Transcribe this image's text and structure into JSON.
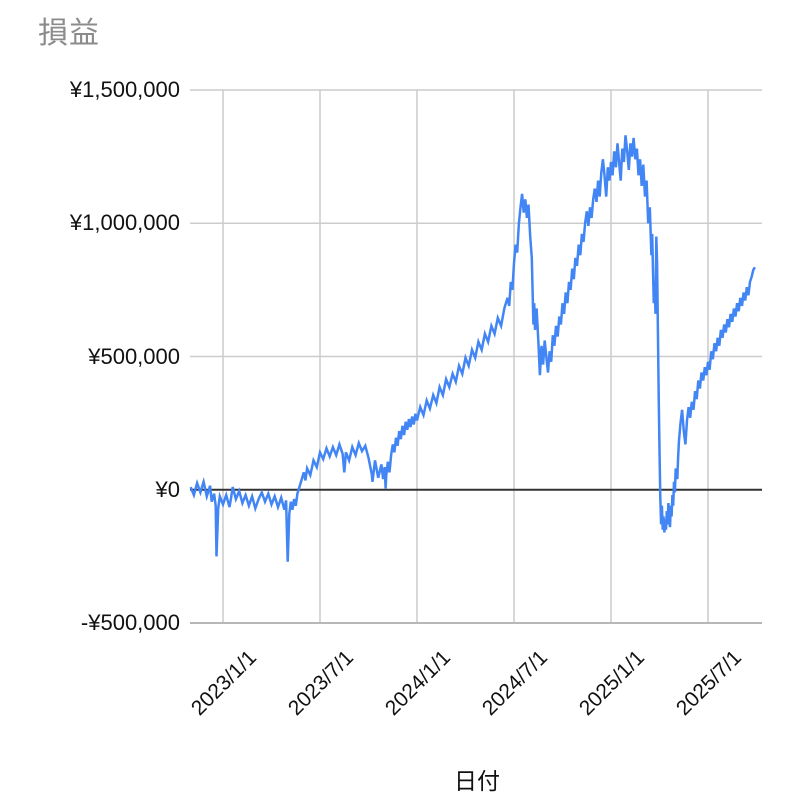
{
  "chart_data": {
    "type": "line",
    "title": "損益",
    "xlabel": "日付",
    "ylabel": "",
    "series_name": "損益",
    "series_color": "#4285F4",
    "grid_color": "#cccccc",
    "bottom_axis_color": "#b7b7b7",
    "baseline_color": "#333333",
    "title_color": "#8b8b8b",
    "label_color": "#111111",
    "x_unit": "months_since_2022-11-01",
    "y_unit": "JPY_thousands",
    "ylim_k": [
      -500,
      1500
    ],
    "baseline_k": 0,
    "grid": true,
    "legend_position": "none",
    "y_ticks": [
      {
        "label": "¥1,500,000",
        "value_k": 1500
      },
      {
        "label": "¥1,000,000",
        "value_k": 1000
      },
      {
        "label": "¥500,000",
        "value_k": 500
      },
      {
        "label": "¥0",
        "value_k": 0
      },
      {
        "label": "-¥500,000",
        "value_k": -500
      }
    ],
    "x_ticks": [
      {
        "label": "2023/1/1",
        "month": 2
      },
      {
        "label": "2023/7/1",
        "month": 8
      },
      {
        "label": "2024/1/1",
        "month": 14
      },
      {
        "label": "2024/7/1",
        "month": 20
      },
      {
        "label": "2025/1/1",
        "month": 26
      },
      {
        "label": "2025/7/1",
        "month": 32
      }
    ],
    "points": [
      [
        0,
        10
      ],
      [
        0.2,
        -20
      ],
      [
        0.4,
        25
      ],
      [
        0.6,
        -10
      ],
      [
        0.8,
        30
      ],
      [
        1.0,
        -25
      ],
      [
        1.2,
        15
      ],
      [
        1.3,
        -45
      ],
      [
        1.45,
        -15
      ],
      [
        1.55,
        -60
      ],
      [
        1.6,
        -250
      ],
      [
        1.7,
        -70
      ],
      [
        1.8,
        -25
      ],
      [
        2.0,
        -55
      ],
      [
        2.2,
        -20
      ],
      [
        2.4,
        -65
      ],
      [
        2.5,
        -30
      ],
      [
        2.6,
        10
      ],
      [
        2.8,
        -35
      ],
      [
        3.0,
        -5
      ],
      [
        3.2,
        -50
      ],
      [
        3.4,
        -20
      ],
      [
        3.6,
        -60
      ],
      [
        3.8,
        -25
      ],
      [
        4.0,
        -70
      ],
      [
        4.2,
        -35
      ],
      [
        4.4,
        -10
      ],
      [
        4.6,
        -45
      ],
      [
        4.8,
        -15
      ],
      [
        5.0,
        -55
      ],
      [
        5.2,
        -25
      ],
      [
        5.4,
        -65
      ],
      [
        5.6,
        -30
      ],
      [
        5.8,
        -75
      ],
      [
        5.9,
        -40
      ],
      [
        6.0,
        -270
      ],
      [
        6.1,
        -90
      ],
      [
        6.2,
        -45
      ],
      [
        6.3,
        -75
      ],
      [
        6.4,
        -35
      ],
      [
        6.5,
        -60
      ],
      [
        6.6,
        -15
      ],
      [
        6.8,
        25
      ],
      [
        7.0,
        65
      ],
      [
        7.1,
        35
      ],
      [
        7.2,
        80
      ],
      [
        7.4,
        55
      ],
      [
        7.6,
        110
      ],
      [
        7.8,
        85
      ],
      [
        8.0,
        140
      ],
      [
        8.2,
        115
      ],
      [
        8.4,
        155
      ],
      [
        8.6,
        125
      ],
      [
        8.8,
        160
      ],
      [
        9.0,
        130
      ],
      [
        9.2,
        170
      ],
      [
        9.4,
        135
      ],
      [
        9.5,
        65
      ],
      [
        9.6,
        140
      ],
      [
        9.8,
        110
      ],
      [
        10.0,
        160
      ],
      [
        10.2,
        130
      ],
      [
        10.4,
        175
      ],
      [
        10.6,
        145
      ],
      [
        10.8,
        165
      ],
      [
        11.0,
        120
      ],
      [
        11.2,
        60
      ],
      [
        11.25,
        30
      ],
      [
        11.4,
        110
      ],
      [
        11.6,
        45
      ],
      [
        11.8,
        95
      ],
      [
        11.9,
        40
      ],
      [
        12.0,
        85
      ],
      [
        12.06,
        5
      ],
      [
        12.1,
        55
      ],
      [
        12.2,
        105
      ],
      [
        12.3,
        65
      ],
      [
        12.4,
        130
      ],
      [
        12.5,
        170
      ],
      [
        12.6,
        140
      ],
      [
        12.7,
        195
      ],
      [
        12.8,
        165
      ],
      [
        12.9,
        220
      ],
      [
        13.0,
        190
      ],
      [
        13.1,
        240
      ],
      [
        13.2,
        205
      ],
      [
        13.3,
        255
      ],
      [
        13.4,
        225
      ],
      [
        13.5,
        265
      ],
      [
        13.6,
        235
      ],
      [
        13.7,
        275
      ],
      [
        13.8,
        245
      ],
      [
        13.9,
        285
      ],
      [
        14.0,
        260
      ],
      [
        14.2,
        310
      ],
      [
        14.4,
        280
      ],
      [
        14.6,
        335
      ],
      [
        14.8,
        305
      ],
      [
        15.0,
        355
      ],
      [
        15.2,
        325
      ],
      [
        15.4,
        385
      ],
      [
        15.6,
        355
      ],
      [
        15.8,
        415
      ],
      [
        16.0,
        385
      ],
      [
        16.2,
        435
      ],
      [
        16.4,
        405
      ],
      [
        16.6,
        465
      ],
      [
        16.8,
        435
      ],
      [
        17.0,
        495
      ],
      [
        17.2,
        465
      ],
      [
        17.4,
        525
      ],
      [
        17.6,
        495
      ],
      [
        17.8,
        555
      ],
      [
        18.0,
        525
      ],
      [
        18.2,
        585
      ],
      [
        18.4,
        555
      ],
      [
        18.6,
        615
      ],
      [
        18.8,
        585
      ],
      [
        19.0,
        645
      ],
      [
        19.2,
        615
      ],
      [
        19.4,
        680
      ],
      [
        19.6,
        720
      ],
      [
        19.7,
        690
      ],
      [
        19.8,
        780
      ],
      [
        19.9,
        750
      ],
      [
        20.0,
        850
      ],
      [
        20.1,
        920
      ],
      [
        20.2,
        890
      ],
      [
        20.3,
        1000
      ],
      [
        20.4,
        1060
      ],
      [
        20.5,
        1110
      ],
      [
        20.6,
        1040
      ],
      [
        20.7,
        1090
      ],
      [
        20.8,
        1020
      ],
      [
        20.9,
        1070
      ],
      [
        21.0,
        950
      ],
      [
        21.1,
        870
      ],
      [
        21.2,
        620
      ],
      [
        21.25,
        700
      ],
      [
        21.3,
        600
      ],
      [
        21.4,
        680
      ],
      [
        21.5,
        560
      ],
      [
        21.6,
        430
      ],
      [
        21.7,
        540
      ],
      [
        21.8,
        470
      ],
      [
        21.9,
        560
      ],
      [
        22.0,
        500
      ],
      [
        22.1,
        440
      ],
      [
        22.2,
        520
      ],
      [
        22.3,
        480
      ],
      [
        22.4,
        580
      ],
      [
        22.5,
        540
      ],
      [
        22.6,
        615
      ],
      [
        22.7,
        575
      ],
      [
        22.8,
        650
      ],
      [
        22.9,
        620
      ],
      [
        23.0,
        700
      ],
      [
        23.1,
        660
      ],
      [
        23.2,
        740
      ],
      [
        23.3,
        700
      ],
      [
        23.4,
        780
      ],
      [
        23.5,
        750
      ],
      [
        23.6,
        830
      ],
      [
        23.7,
        790
      ],
      [
        23.8,
        870
      ],
      [
        23.9,
        840
      ],
      [
        24.0,
        920
      ],
      [
        24.1,
        880
      ],
      [
        24.2,
        960
      ],
      [
        24.3,
        930
      ],
      [
        24.4,
        1000
      ],
      [
        24.5,
        1045
      ],
      [
        24.6,
        990
      ],
      [
        24.7,
        1060
      ],
      [
        24.8,
        1020
      ],
      [
        24.9,
        1090
      ],
      [
        25.0,
        1130
      ],
      [
        25.1,
        1080
      ],
      [
        25.2,
        1160
      ],
      [
        25.3,
        1100
      ],
      [
        25.4,
        1190
      ],
      [
        25.5,
        1240
      ],
      [
        25.6,
        1180
      ],
      [
        25.7,
        1100
      ],
      [
        25.8,
        1210
      ],
      [
        25.9,
        1160
      ],
      [
        26.0,
        1230
      ],
      [
        26.1,
        1180
      ],
      [
        26.2,
        1270
      ],
      [
        26.3,
        1210
      ],
      [
        26.4,
        1300
      ],
      [
        26.5,
        1230
      ],
      [
        26.6,
        1160
      ],
      [
        26.7,
        1280
      ],
      [
        26.8,
        1230
      ],
      [
        26.9,
        1330
      ],
      [
        27.0,
        1270
      ],
      [
        27.1,
        1200
      ],
      [
        27.2,
        1300
      ],
      [
        27.3,
        1250
      ],
      [
        27.4,
        1320
      ],
      [
        27.5,
        1240
      ],
      [
        27.6,
        1280
      ],
      [
        27.7,
        1180
      ],
      [
        27.8,
        1240
      ],
      [
        27.9,
        1140
      ],
      [
        28.0,
        1220
      ],
      [
        28.1,
        1100
      ],
      [
        28.2,
        1160
      ],
      [
        28.3,
        1000
      ],
      [
        28.4,
        1060
      ],
      [
        28.5,
        880
      ],
      [
        28.55,
        960
      ],
      [
        28.6,
        820
      ],
      [
        28.65,
        700
      ],
      [
        28.7,
        780
      ],
      [
        28.75,
        660
      ],
      [
        28.8,
        950
      ],
      [
        28.85,
        850
      ],
      [
        28.9,
        600
      ],
      [
        28.95,
        350
      ],
      [
        29.0,
        150
      ],
      [
        29.05,
        -30
      ],
      [
        29.1,
        -130
      ],
      [
        29.15,
        -60
      ],
      [
        29.2,
        -150
      ],
      [
        29.25,
        -100
      ],
      [
        29.3,
        -160
      ],
      [
        29.35,
        -110
      ],
      [
        29.4,
        -150
      ],
      [
        29.45,
        -80
      ],
      [
        29.5,
        -130
      ],
      [
        29.55,
        -50
      ],
      [
        29.6,
        -110
      ],
      [
        29.65,
        -140
      ],
      [
        29.7,
        -60
      ],
      [
        29.75,
        -100
      ],
      [
        29.8,
        -20
      ],
      [
        29.85,
        -60
      ],
      [
        29.9,
        30
      ],
      [
        29.95,
        -10
      ],
      [
        30.0,
        80
      ],
      [
        30.1,
        40
      ],
      [
        30.15,
        120
      ],
      [
        30.2,
        180
      ],
      [
        30.3,
        250
      ],
      [
        30.4,
        300
      ],
      [
        30.5,
        220
      ],
      [
        30.6,
        170
      ],
      [
        30.7,
        260
      ],
      [
        30.8,
        310
      ],
      [
        30.9,
        270
      ],
      [
        31.0,
        330
      ],
      [
        31.1,
        300
      ],
      [
        31.2,
        370
      ],
      [
        31.3,
        340
      ],
      [
        31.4,
        410
      ],
      [
        31.5,
        380
      ],
      [
        31.6,
        440
      ],
      [
        31.7,
        410
      ],
      [
        31.8,
        460
      ],
      [
        31.9,
        430
      ],
      [
        32.0,
        480
      ],
      [
        32.1,
        450
      ],
      [
        32.2,
        520
      ],
      [
        32.3,
        490
      ],
      [
        32.4,
        550
      ],
      [
        32.5,
        520
      ],
      [
        32.6,
        570
      ],
      [
        32.7,
        540
      ],
      [
        32.8,
        600
      ],
      [
        32.9,
        570
      ],
      [
        33.0,
        620
      ],
      [
        33.1,
        590
      ],
      [
        33.2,
        640
      ],
      [
        33.3,
        610
      ],
      [
        33.4,
        660
      ],
      [
        33.5,
        630
      ],
      [
        33.6,
        680
      ],
      [
        33.7,
        650
      ],
      [
        33.8,
        700
      ],
      [
        33.9,
        670
      ],
      [
        34.0,
        720
      ],
      [
        34.1,
        690
      ],
      [
        34.2,
        740
      ],
      [
        34.3,
        710
      ],
      [
        34.4,
        760
      ],
      [
        34.5,
        730
      ],
      [
        34.6,
        780
      ],
      [
        34.7,
        800
      ],
      [
        34.8,
        825
      ],
      [
        34.9,
        835
      ]
    ]
  }
}
